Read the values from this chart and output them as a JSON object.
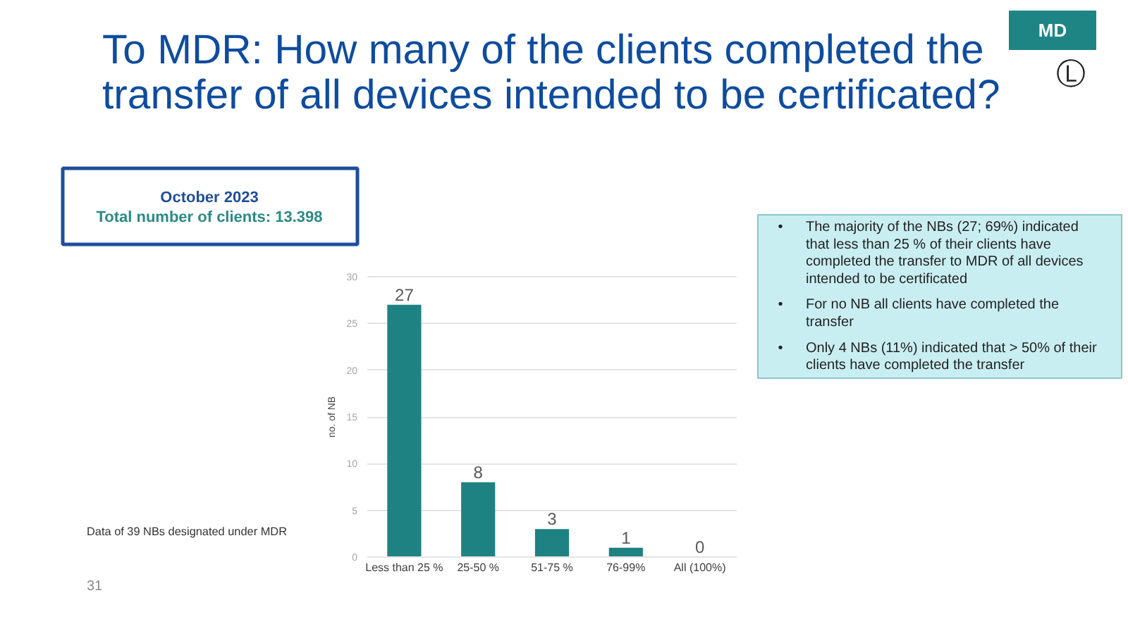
{
  "chart_data": {
    "type": "bar",
    "title": "To MDR: How many of the clients completed the transfer of all devices intended to be certificated?",
    "ylabel": "no. of NB",
    "categories": [
      "Less than 25 %",
      "25-50 %",
      "51-75 %",
      "76-99%",
      "All (100%)"
    ],
    "values": [
      27,
      8,
      3,
      1,
      0
    ],
    "color": "#1f8282",
    "ylim": [
      0,
      30
    ],
    "yticks": [
      0,
      5,
      10,
      15,
      20,
      25,
      30
    ],
    "grid": "y",
    "data_labels": true,
    "annotations": [
      "MD",
      "Ⓛ",
      "October 2023",
      "Total number of clients: 13.398",
      "• The majority of the NBs (27; 69%) indicated that less than 25 % of their clients have completed the transfer to MDR of all devices intended to be certificated",
      "• For no NB all clients have completed the transfer",
      "• Only 4 NBs (11%) indicated that > 50% of their clients have completed the transfer",
      "Data of 39 NBs designated under MDR",
      "31"
    ]
  }
}
